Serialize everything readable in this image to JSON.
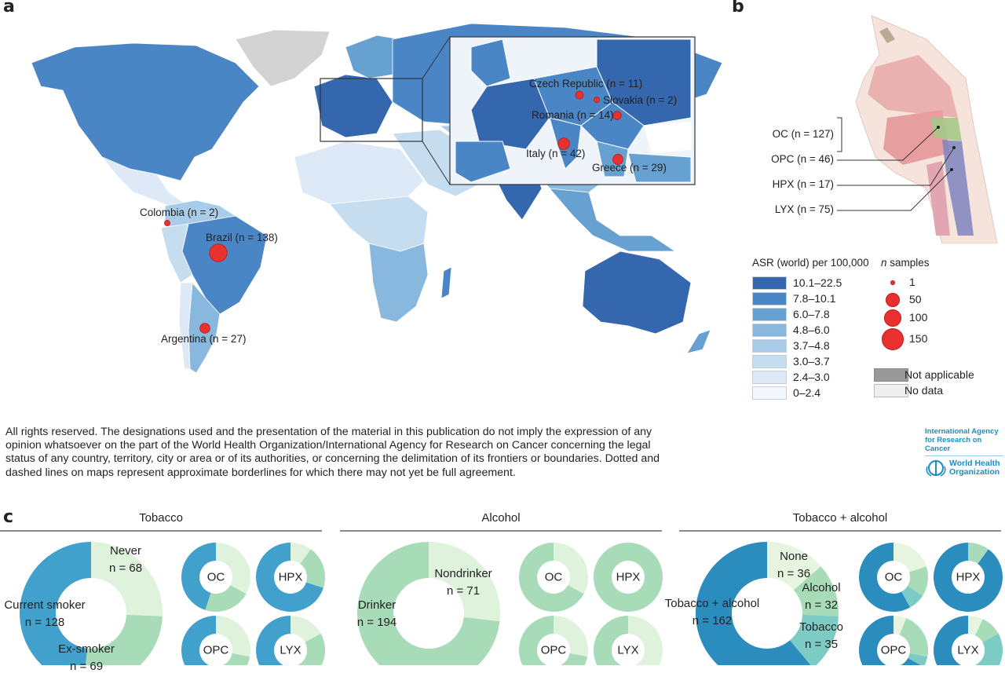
{
  "panels": {
    "a": "a",
    "b": "b",
    "c": "c"
  },
  "map": {
    "samples": [
      {
        "country": "Colombia",
        "n": 2,
        "label": "Colombia (n = 2)"
      },
      {
        "country": "Brazil",
        "n": 138,
        "label": "Brazil (n = 138)"
      },
      {
        "country": "Argentina",
        "n": 27,
        "label": "Argentina (n = 27)"
      },
      {
        "country": "Czech Republic",
        "n": 11,
        "label": "Czech Republic (n = 11)"
      },
      {
        "country": "Slovakia",
        "n": 2,
        "label": "Slovakia (n = 2)"
      },
      {
        "country": "Romania",
        "n": 14,
        "label": "Romania (n = 14)"
      },
      {
        "country": "Italy",
        "n": 42,
        "label": "Italy (n = 42)"
      },
      {
        "country": "Greece",
        "n": 29,
        "label": "Greece (n = 29)"
      }
    ],
    "marker_color": "#e8302f"
  },
  "legend": {
    "asr_title": "ASR (world) per 100,000",
    "bins": [
      {
        "label": "10.1–22.5",
        "color": "#3567ae"
      },
      {
        "label": "7.8–10.1",
        "color": "#4a86c5"
      },
      {
        "label": "6.0–7.8",
        "color": "#67a1d2"
      },
      {
        "label": "4.8–6.0",
        "color": "#88b8de"
      },
      {
        "label": "3.7–4.8",
        "color": "#a9cde8"
      },
      {
        "label": "3.0–3.7",
        "color": "#c6ddef"
      },
      {
        "label": "2.4–3.0",
        "color": "#dde9f6"
      },
      {
        "label": "0–2.4",
        "color": "#f4f8fc"
      }
    ],
    "samples_title": "n samples",
    "sample_sizes": [
      "1",
      "50",
      "100",
      "150"
    ],
    "not_applicable": {
      "label": "Not applicable",
      "color": "#999999"
    },
    "no_data": {
      "label": "No data",
      "color": "#eeeeee"
    }
  },
  "anatomy": {
    "sites": [
      {
        "label": "OC (n = 127)"
      },
      {
        "label": "OPC (n = 46)"
      },
      {
        "label": "HPX (n = 17)"
      },
      {
        "label": "LYX (n = 75)"
      }
    ]
  },
  "disclaimer": "All rights reserved. The designations used and the presentation of the material in this publication do not imply the expression of any opinion whatsoever on the part of the World Health Organization/International Agency for Research on Cancer concerning the legal status of any country, territory, city or area or of its authorities, or concerning the delimitation of its frontiers or boundaries. Dotted and dashed lines on maps represent approximate borderlines for which there may not yet be full agreement.",
  "logo": {
    "iarc": "International Agency for Research on Cancer",
    "who": "World Health Organization"
  },
  "chart_data": [
    {
      "type": "pie",
      "title": "Tobacco",
      "categories": [
        "Never",
        "Ex-smoker",
        "Current smoker"
      ],
      "colors": [
        "#def2dc",
        "#a8dbb7",
        "#42a1cc"
      ],
      "overall": {
        "values": [
          68,
          69,
          128
        ],
        "labels": [
          "n = 68",
          "n = 69",
          "n = 128"
        ]
      },
      "sites": [
        {
          "site": "OC",
          "fractions": [
            0.33,
            0.22,
            0.45
          ]
        },
        {
          "site": "HPX",
          "fractions": [
            0.1,
            0.2,
            0.7
          ]
        },
        {
          "site": "OPC",
          "fractions": [
            0.28,
            0.22,
            0.5
          ]
        },
        {
          "site": "LYX",
          "fractions": [
            0.17,
            0.33,
            0.5
          ]
        }
      ]
    },
    {
      "type": "pie",
      "title": "Alcohol",
      "categories": [
        "Nondrinker",
        "Drinker"
      ],
      "colors": [
        "#def2dc",
        "#a8dbb7"
      ],
      "overall": {
        "values": [
          71,
          194
        ],
        "labels": [
          "n = 71",
          "n = 194"
        ]
      },
      "sites": [
        {
          "site": "OC",
          "fractions": [
            0.33,
            0.67
          ]
        },
        {
          "site": "HPX",
          "fractions": [
            0.0,
            1.0
          ]
        },
        {
          "site": "OPC",
          "fractions": [
            0.28,
            0.72
          ]
        },
        {
          "site": "LYX",
          "fractions": [
            0.45,
            0.55
          ]
        }
      ]
    },
    {
      "type": "pie",
      "title": "Tobacco + alcohol",
      "categories": [
        "None",
        "Alcohol",
        "Tobacco",
        "Tobacco + alcohol"
      ],
      "colors": [
        "#e6f4e0",
        "#a8dbb7",
        "#7ccbc4",
        "#2b8cbe"
      ],
      "overall": {
        "values": [
          36,
          32,
          35,
          162
        ],
        "labels": [
          "n = 36",
          "n = 32",
          "n = 35",
          "n = 162"
        ]
      },
      "sites": [
        {
          "site": "OC",
          "fractions": [
            0.2,
            0.14,
            0.08,
            0.58
          ]
        },
        {
          "site": "HPX",
          "fractions": [
            0.0,
            0.1,
            0.0,
            0.9
          ]
        },
        {
          "site": "OPC",
          "fractions": [
            0.06,
            0.22,
            0.05,
            0.67
          ]
        },
        {
          "site": "LYX",
          "fractions": [
            0.07,
            0.1,
            0.33,
            0.5
          ]
        }
      ]
    }
  ]
}
